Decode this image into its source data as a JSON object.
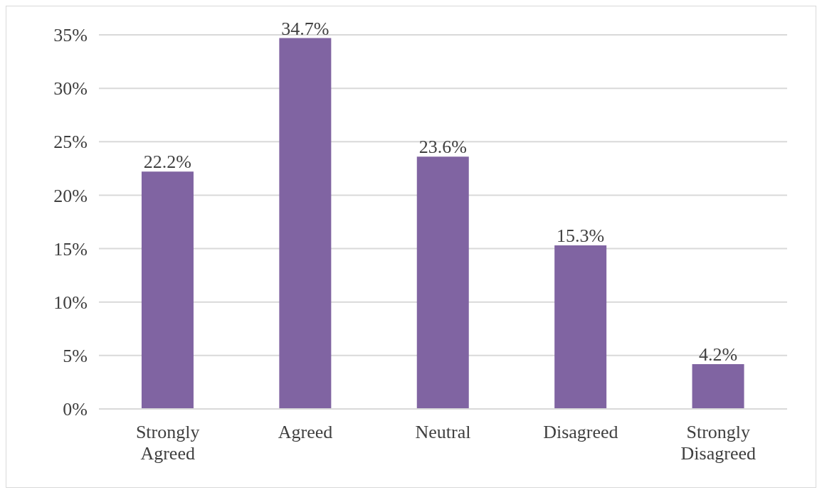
{
  "chart_data": {
    "type": "bar",
    "categories": [
      "Strongly Agreed",
      "Agreed",
      "Neutral",
      "Disagreed",
      "Strongly Disagreed"
    ],
    "values": [
      22.2,
      34.7,
      23.6,
      15.3,
      4.2
    ],
    "value_labels": [
      "22.2%",
      "34.7%",
      "23.6%",
      "15.3%",
      "4.2%"
    ],
    "color": "#8064a2",
    "ylim": [
      0,
      35
    ],
    "yticks": [
      {
        "value": 0,
        "label": "0%"
      },
      {
        "value": 5,
        "label": "5%"
      },
      {
        "value": 10,
        "label": "10%"
      },
      {
        "value": 15,
        "label": "15%"
      },
      {
        "value": 20,
        "label": "20%"
      },
      {
        "value": 25,
        "label": "25%"
      },
      {
        "value": 30,
        "label": "30%"
      },
      {
        "value": 35,
        "label": "35%"
      }
    ],
    "grid": "y"
  }
}
